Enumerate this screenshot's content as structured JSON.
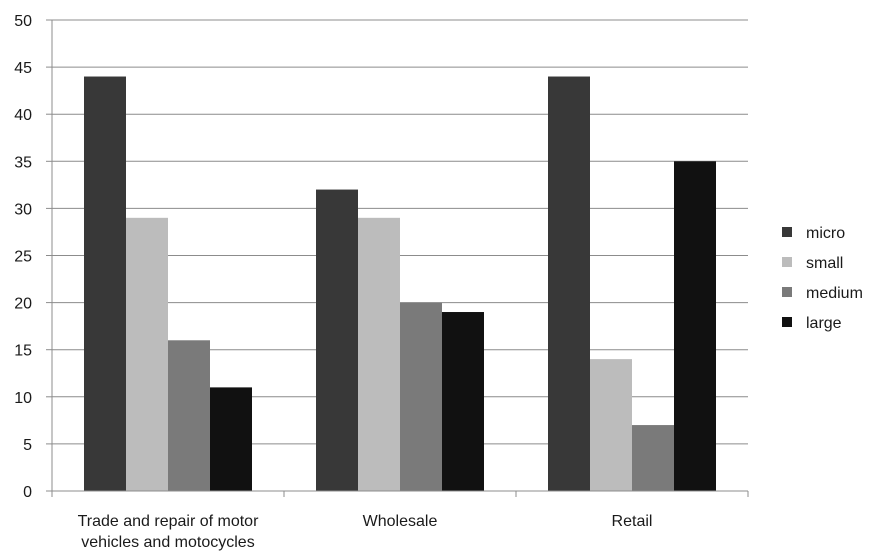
{
  "chart_data": {
    "type": "bar",
    "title": "",
    "xlabel": "",
    "ylabel": "",
    "ylim": [
      0,
      50
    ],
    "yticks": [
      0,
      5,
      10,
      15,
      20,
      25,
      30,
      35,
      40,
      45,
      50
    ],
    "grid": true,
    "legend_position": "right",
    "categories": [
      [
        "Trade and repair of motor",
        "vehicles and motocycles"
      ],
      [
        "Wholesale"
      ],
      [
        "Retail"
      ]
    ],
    "series": [
      {
        "name": "micro",
        "color": "#383838",
        "values": [
          44,
          32,
          44
        ]
      },
      {
        "name": "small",
        "color": "#bcbcbc",
        "values": [
          29,
          29,
          14
        ]
      },
      {
        "name": "medium",
        "color": "#7a7a7a",
        "values": [
          16,
          20,
          7
        ]
      },
      {
        "name": "large",
        "color": "#111111",
        "values": [
          11,
          19,
          35
        ]
      }
    ]
  }
}
